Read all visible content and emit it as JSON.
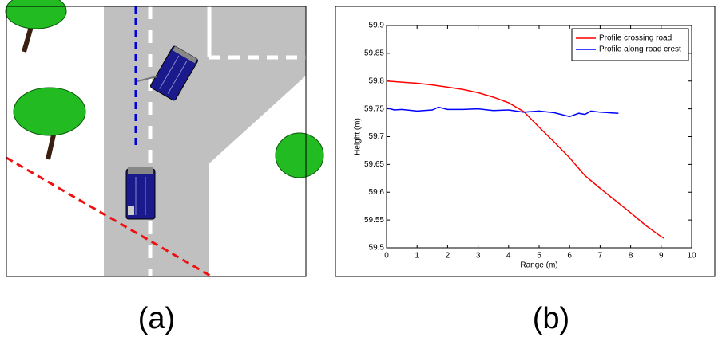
{
  "panel_labels": [
    "(a)",
    "(b)"
  ],
  "chart_data": {
    "type": "line",
    "xlabel": "Range (m)",
    "ylabel": "Height (m)",
    "xlim": [
      0,
      10
    ],
    "xticks": [
      0,
      1,
      2,
      3,
      4,
      5,
      6,
      7,
      8,
      9,
      10
    ],
    "ylim": [
      59.5,
      59.9
    ],
    "yticks": [
      59.5,
      59.55,
      59.6,
      59.65,
      59.7,
      59.75,
      59.8,
      59.85,
      59.9
    ],
    "grid": false,
    "legend": "upper right",
    "series": [
      {
        "name": "Profile crossing road",
        "color": "#ff0000",
        "x": [
          0,
          0.5,
          1,
          1.5,
          2,
          2.5,
          3,
          3.5,
          4,
          4.5,
          5,
          5.5,
          6,
          6.5,
          7,
          7.5,
          8,
          8.5,
          9,
          9.1
        ],
        "values": [
          59.8,
          59.798,
          59.796,
          59.793,
          59.789,
          59.785,
          59.779,
          59.771,
          59.761,
          59.745,
          59.717,
          59.69,
          59.662,
          59.63,
          59.607,
          59.585,
          59.563,
          59.54,
          59.52,
          59.517
        ]
      },
      {
        "name": "Profile along road crest",
        "color": "#0000ff",
        "x": [
          0,
          0.25,
          0.5,
          1,
          1.5,
          1.7,
          2,
          2.5,
          3,
          3.5,
          4,
          4.5,
          5,
          5.5,
          6,
          6.3,
          6.5,
          6.7,
          7,
          7.6
        ],
        "values": [
          59.752,
          59.748,
          59.749,
          59.746,
          59.748,
          59.753,
          59.749,
          59.749,
          59.75,
          59.747,
          59.748,
          59.744,
          59.746,
          59.743,
          59.736,
          59.742,
          59.74,
          59.746,
          59.744,
          59.742
        ]
      }
    ]
  }
}
